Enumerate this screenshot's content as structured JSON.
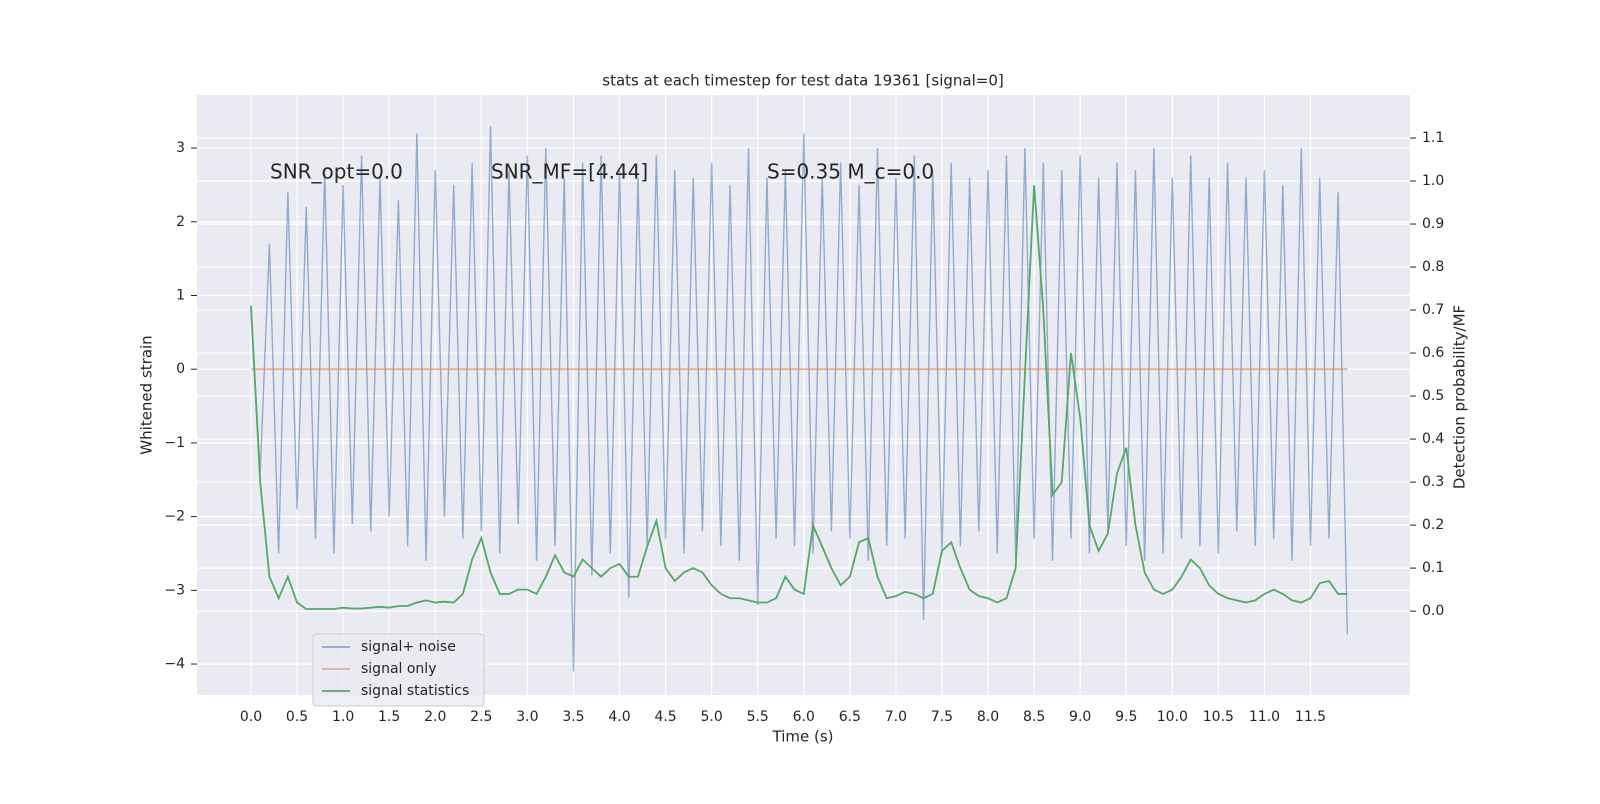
{
  "chart_data": {
    "type": "line",
    "title": "stats at each timestep for test data 19361 [signal=0]",
    "xlabel": "Time (s)",
    "ylabel": "Whitened strain",
    "y2label": "Detection probability/MF",
    "annotations": [
      "SNR_opt=0.0",
      "SNR_MF=[4.44]",
      "S=0.35   M_c=0.0"
    ],
    "x": [
      0,
      0.1,
      0.2,
      0.3,
      0.4,
      0.5,
      0.6,
      0.7,
      0.8,
      0.9,
      1,
      1.1,
      1.2,
      1.3,
      1.4,
      1.5,
      1.6,
      1.7,
      1.8,
      1.9,
      2,
      2.1,
      2.2,
      2.3,
      2.4,
      2.5,
      2.6,
      2.7,
      2.8,
      2.9,
      3,
      3.1,
      3.2,
      3.3,
      3.4,
      3.5,
      3.6,
      3.7,
      3.8,
      3.9,
      4,
      4.1,
      4.2,
      4.3,
      4.4,
      4.5,
      4.6,
      4.7,
      4.8,
      4.9,
      5,
      5.1,
      5.2,
      5.3,
      5.4,
      5.5,
      5.6,
      5.7,
      5.8,
      5.9,
      6,
      6.1,
      6.2,
      6.3,
      6.4,
      6.5,
      6.6,
      6.7,
      6.8,
      6.9,
      7,
      7.1,
      7.2,
      7.3,
      7.4,
      7.5,
      7.6,
      7.7,
      7.8,
      7.9,
      8,
      8.1,
      8.2,
      8.3,
      8.4,
      8.5,
      8.6,
      8.7,
      8.8,
      8.9,
      9,
      9.1,
      9.2,
      9.3,
      9.4,
      9.5,
      9.6,
      9.7,
      9.8,
      9.9,
      10,
      10.1,
      10.2,
      10.3,
      10.4,
      10.5,
      10.6,
      10.7,
      10.8,
      10.9,
      11,
      11.1,
      11.2,
      11.3,
      11.4,
      11.5,
      11.6,
      11.7,
      11.8,
      11.9
    ],
    "series": [
      {
        "name": "signal+ noise",
        "color": "#4c72b0",
        "values": [
          0.8,
          -1.4,
          1.7,
          -2.5,
          2.4,
          -1.9,
          2.2,
          -2.3,
          2.7,
          -2.5,
          2.5,
          -2.1,
          2.9,
          -2.2,
          2.6,
          -2.0,
          2.3,
          -2.4,
          3.2,
          -2.6,
          2.7,
          -2.0,
          2.5,
          -2.3,
          2.8,
          -2.2,
          3.3,
          -2.5,
          2.7,
          -2.1,
          2.9,
          -2.6,
          3.0,
          -2.4,
          2.6,
          -4.1,
          2.8,
          -2.8,
          2.9,
          -2.5,
          2.7,
          -3.1,
          2.6,
          -2.4,
          2.9,
          -2.3,
          2.7,
          -2.5,
          2.6,
          -2.2,
          2.8,
          -2.4,
          2.5,
          -2.6,
          3.0,
          -3.2,
          2.6,
          -2.3,
          2.7,
          -2.4,
          3.2,
          -2.5,
          2.6,
          -2.2,
          2.8,
          -2.3,
          2.5,
          -2.6,
          3.0,
          -2.4,
          2.6,
          -2.3,
          2.9,
          -3.4,
          2.7,
          -2.5,
          2.8,
          -2.4,
          2.6,
          -2.2,
          2.7,
          -2.5,
          2.9,
          -2.6,
          3.0,
          -2.3,
          2.8,
          -2.6,
          2.7,
          -2.3,
          2.9,
          -2.5,
          2.6,
          -2.2,
          2.8,
          -2.4,
          2.7,
          -2.6,
          3.0,
          -2.5,
          2.6,
          -2.3,
          2.9,
          -2.4,
          2.6,
          -2.5,
          2.8,
          -2.2,
          2.6,
          -2.4,
          2.7,
          -2.3,
          2.5,
          -2.6,
          3.0,
          -2.4,
          2.6,
          -2.3,
          2.4,
          -3.6
        ]
      },
      {
        "name": "signal only",
        "color": "#dd8452",
        "values": [
          0,
          0,
          0,
          0,
          0,
          0,
          0,
          0,
          0,
          0,
          0,
          0,
          0,
          0,
          0,
          0,
          0,
          0,
          0,
          0,
          0,
          0,
          0,
          0,
          0,
          0,
          0,
          0,
          0,
          0,
          0,
          0,
          0,
          0,
          0,
          0,
          0,
          0,
          0,
          0,
          0,
          0,
          0,
          0,
          0,
          0,
          0,
          0,
          0,
          0,
          0,
          0,
          0,
          0,
          0,
          0,
          0,
          0,
          0,
          0,
          0,
          0,
          0,
          0,
          0,
          0,
          0,
          0,
          0,
          0,
          0,
          0,
          0,
          0,
          0,
          0,
          0,
          0,
          0,
          0,
          0,
          0,
          0,
          0,
          0,
          0,
          0,
          0,
          0,
          0,
          0,
          0,
          0,
          0,
          0,
          0,
          0,
          0,
          0,
          0,
          0,
          0,
          0,
          0,
          0,
          0,
          0,
          0,
          0,
          0,
          0,
          0,
          0,
          0,
          0,
          0,
          0,
          0,
          0,
          0
        ]
      },
      {
        "name": "signal statistics",
        "color": "#55a868",
        "axis": "y2",
        "values": [
          0.71,
          0.3,
          0.08,
          0.03,
          0.08,
          0.02,
          0.005,
          0.005,
          0.005,
          0.005,
          0.008,
          0.006,
          0.006,
          0.008,
          0.01,
          0.008,
          0.012,
          0.012,
          0.02,
          0.025,
          0.02,
          0.022,
          0.02,
          0.04,
          0.12,
          0.17,
          0.09,
          0.04,
          0.04,
          0.05,
          0.05,
          0.04,
          0.08,
          0.13,
          0.09,
          0.08,
          0.12,
          0.1,
          0.08,
          0.1,
          0.11,
          0.08,
          0.08,
          0.15,
          0.21,
          0.1,
          0.07,
          0.09,
          0.1,
          0.09,
          0.06,
          0.04,
          0.03,
          0.03,
          0.025,
          0.02,
          0.02,
          0.03,
          0.08,
          0.05,
          0.04,
          0.2,
          0.15,
          0.1,
          0.06,
          0.08,
          0.16,
          0.17,
          0.08,
          0.03,
          0.035,
          0.045,
          0.04,
          0.03,
          0.04,
          0.14,
          0.16,
          0.1,
          0.05,
          0.035,
          0.03,
          0.02,
          0.03,
          0.1,
          0.55,
          0.99,
          0.7,
          0.27,
          0.3,
          0.6,
          0.45,
          0.2,
          0.14,
          0.18,
          0.32,
          0.38,
          0.2,
          0.09,
          0.05,
          0.04,
          0.05,
          0.08,
          0.12,
          0.1,
          0.06,
          0.04,
          0.03,
          0.025,
          0.02,
          0.025,
          0.04,
          0.05,
          0.04,
          0.025,
          0.02,
          0.03,
          0.065,
          0.07,
          0.04,
          0.04
        ]
      }
    ],
    "xlim": [
      -0.586,
      12.58
    ],
    "ylim": [
      -4.42,
      3.72
    ],
    "y2lim": [
      -0.195,
      1.2
    ],
    "xticks": [
      {
        "value": 0,
        "label": "0.0"
      },
      {
        "value": 0.5,
        "label": "0.5"
      },
      {
        "value": 1,
        "label": "1.0"
      },
      {
        "value": 1.5,
        "label": "1.5"
      },
      {
        "value": 2,
        "label": "2.0"
      },
      {
        "value": 2.5,
        "label": "2.5"
      },
      {
        "value": 3,
        "label": "3.0"
      },
      {
        "value": 3.5,
        "label": "3.5"
      },
      {
        "value": 4,
        "label": "4.0"
      },
      {
        "value": 4.5,
        "label": "4.5"
      },
      {
        "value": 5,
        "label": "5.0"
      },
      {
        "value": 5.5,
        "label": "5.5"
      },
      {
        "value": 6,
        "label": "6.0"
      },
      {
        "value": 6.5,
        "label": "6.5"
      },
      {
        "value": 7,
        "label": "7.0"
      },
      {
        "value": 7.5,
        "label": "7.5"
      },
      {
        "value": 8,
        "label": "8.0"
      },
      {
        "value": 8.5,
        "label": "8.5"
      },
      {
        "value": 9,
        "label": "9.0"
      },
      {
        "value": 9.5,
        "label": "9.5"
      },
      {
        "value": 10,
        "label": "10.0"
      },
      {
        "value": 10.5,
        "label": "10.5"
      },
      {
        "value": 11,
        "label": "11.0"
      },
      {
        "value": 11.5,
        "label": "11.5"
      }
    ],
    "yticks": [
      {
        "value": -4,
        "label": "−4"
      },
      {
        "value": -3,
        "label": "−3"
      },
      {
        "value": -2,
        "label": "−2"
      },
      {
        "value": -1,
        "label": "−1"
      },
      0,
      1,
      2,
      3
    ],
    "y2ticks": [
      {
        "value": 0,
        "label": "0.0"
      },
      {
        "value": 0.1,
        "label": "0.1"
      },
      {
        "value": 0.2,
        "label": "0.2"
      },
      {
        "value": 0.3,
        "label": "0.3"
      },
      {
        "value": 0.4,
        "label": "0.4"
      },
      {
        "value": 0.5,
        "label": "0.5"
      },
      {
        "value": 0.6,
        "label": "0.6"
      },
      {
        "value": 0.7,
        "label": "0.7"
      },
      {
        "value": 0.8,
        "label": "0.8"
      },
      {
        "value": 0.9,
        "label": "0.9"
      },
      {
        "value": 1,
        "label": "1.0"
      },
      {
        "value": 1.1,
        "label": "1.1"
      }
    ],
    "grid": true,
    "legend": "lower left"
  }
}
